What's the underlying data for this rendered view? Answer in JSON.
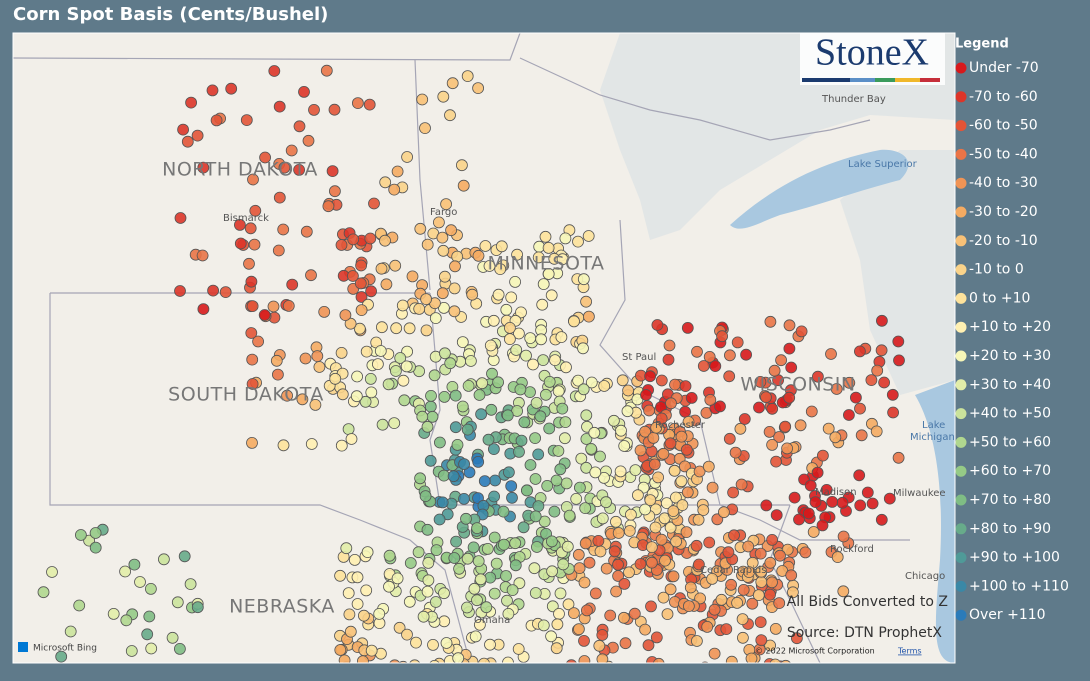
{
  "title": "Corn Spot Basis (Cents/Bushel)",
  "logo": "StoneX",
  "legend": {
    "title": "Legend",
    "items": [
      {
        "label": "Under -70",
        "color": "#d7191c"
      },
      {
        "label": "-70 to -60",
        "color": "#dc3529"
      },
      {
        "label": "-60 to -50",
        "color": "#e25437"
      },
      {
        "label": "-50 to -40",
        "color": "#e97447"
      },
      {
        "label": "-40 to -30",
        "color": "#f09455"
      },
      {
        "label": "-30 to -20",
        "color": "#f5ab62"
      },
      {
        "label": "-20 to -10",
        "color": "#f8c177"
      },
      {
        "label": "-10 to 0",
        "color": "#fad38a"
      },
      {
        "label": "0 to +10",
        "color": "#fde29b"
      },
      {
        "label": "+10 to +20",
        "color": "#fff0b2"
      },
      {
        "label": "+20 to +30",
        "color": "#f6f6b8"
      },
      {
        "label": "+30 to +40",
        "color": "#e2eda9"
      },
      {
        "label": "+40 to +50",
        "color": "#cbe39c"
      },
      {
        "label": "+50 to +60",
        "color": "#b0d78f"
      },
      {
        "label": "+60 to +70",
        "color": "#95ca86"
      },
      {
        "label": "+70 to +80",
        "color": "#7fbd84"
      },
      {
        "label": "+80 to +90",
        "color": "#67ab8a"
      },
      {
        "label": "+90 to +100",
        "color": "#4f9a98"
      },
      {
        "label": "+100 to +110",
        "color": "#3a88a6"
      },
      {
        "label": "Over +110",
        "color": "#2b7bb9"
      }
    ]
  },
  "map": {
    "states": [
      "NORTH DAKOTA",
      "MINNESOTA",
      "SOUTH DAKOTA",
      "WISCONSIN",
      "NEBRASKA"
    ],
    "places": [
      "Thunder Bay",
      "Lake Superior",
      "Bismarck",
      "Fargo",
      "St Paul",
      "Rochester",
      "Madison",
      "Milwaukee",
      "Rockford",
      "Chicago",
      "Cedar Rapids",
      "Omaha",
      "Lake",
      "Michigan"
    ]
  },
  "notes": [
    "All Bids Converted to Z",
    "Source: DTN ProphetX"
  ],
  "attribution": {
    "bing": "Microsoft Bing",
    "copyright": "© 2022 Microsoft Corporation",
    "terms": "Terms"
  }
}
